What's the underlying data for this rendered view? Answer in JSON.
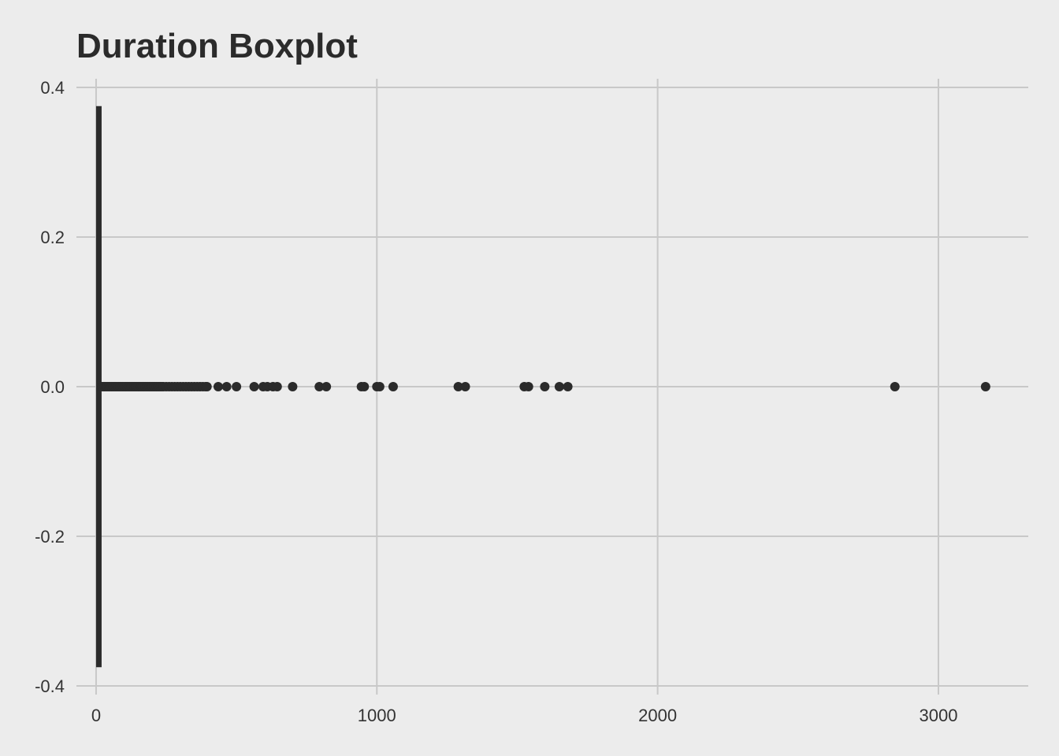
{
  "chart_data": {
    "type": "boxplot",
    "title": "Duration Boxplot",
    "xlabel": "",
    "ylabel": "",
    "xlim": [
      -70,
      3320
    ],
    "ylim": [
      -0.4,
      0.4
    ],
    "x_ticks": [
      0,
      1000,
      2000,
      3000
    ],
    "x_tick_labels": [
      "0",
      "1000",
      "2000",
      "3000"
    ],
    "y_ticks": [
      0.4,
      0.2,
      0.0,
      -0.2,
      -0.4
    ],
    "y_tick_labels": [
      "0.4",
      "0.2",
      "0.0",
      "-0.2",
      "-0.4"
    ],
    "grid": true,
    "box": {
      "y": 0.0,
      "min": 0,
      "q1": 2,
      "median": 4,
      "q3": 7,
      "max": 15,
      "height": [
        -0.375,
        0.375
      ]
    },
    "outliers": [
      20,
      25,
      30,
      35,
      40,
      45,
      50,
      55,
      60,
      65,
      70,
      75,
      80,
      85,
      90,
      95,
      100,
      105,
      110,
      115,
      120,
      125,
      130,
      135,
      140,
      145,
      150,
      155,
      160,
      165,
      170,
      175,
      180,
      185,
      190,
      195,
      200,
      205,
      210,
      215,
      220,
      225,
      230,
      235,
      240,
      250,
      260,
      270,
      280,
      290,
      300,
      310,
      320,
      330,
      340,
      350,
      360,
      370,
      380,
      390,
      395,
      435,
      465,
      500,
      563,
      595,
      610,
      630,
      645,
      700,
      795,
      820,
      945,
      955,
      1000,
      1010,
      1058,
      1290,
      1315,
      1525,
      1540,
      1598,
      1650,
      1680,
      2845,
      3168
    ],
    "color": "#2b2b2b",
    "background": "#ececec",
    "grid_color": "#c8c8c8"
  }
}
